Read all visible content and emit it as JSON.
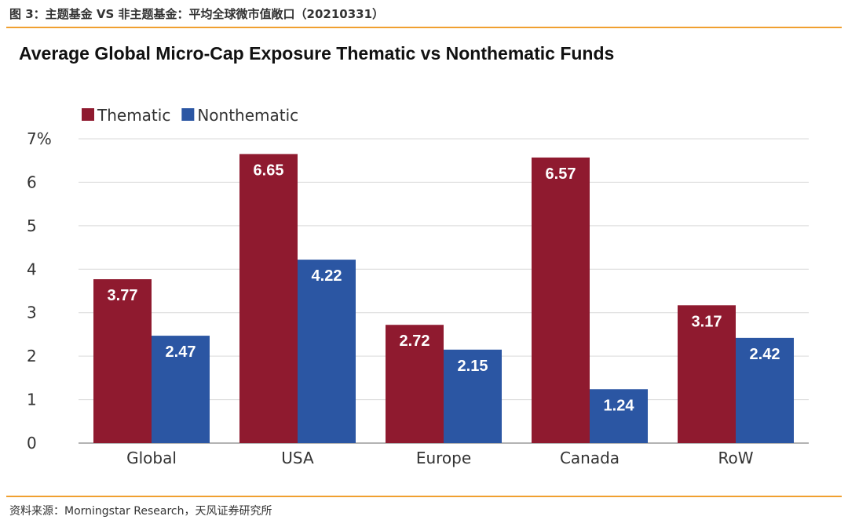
{
  "header": {
    "caption": "图 3：主题基金 VS 非主题基金：平均全球微市值敞口（20210331）"
  },
  "footer": {
    "source": "资料来源：Morningstar Research，天风证券研究所"
  },
  "colors": {
    "accent_rule": "#f0a030",
    "thematic": "#8f1a2f",
    "nonthematic": "#2b56a3",
    "grid": "#d9d9d9"
  },
  "chart_data": {
    "type": "bar",
    "title": "Average Global Micro-Cap Exposure Thematic vs Nonthematic Funds",
    "categories": [
      "Global",
      "USA",
      "Europe",
      "Canada",
      "RoW"
    ],
    "series": [
      {
        "name": "Thematic",
        "values": [
          3.77,
          6.65,
          2.72,
          6.57,
          3.17
        ],
        "labels": [
          "3.77",
          "6.65",
          "2.72",
          "6.57",
          "3.17"
        ]
      },
      {
        "name": "Nonthematic",
        "values": [
          2.47,
          4.22,
          2.15,
          1.24,
          2.42
        ],
        "labels": [
          "2.47",
          "4.22",
          "2.15",
          "1.24",
          "2.42"
        ]
      }
    ],
    "yticks": [
      "0",
      "1",
      "2",
      "3",
      "4",
      "5",
      "6",
      "7%"
    ],
    "ylim": [
      0,
      7
    ],
    "grid": true,
    "legend": "top-left",
    "xlabel": "",
    "ylabel": ""
  }
}
